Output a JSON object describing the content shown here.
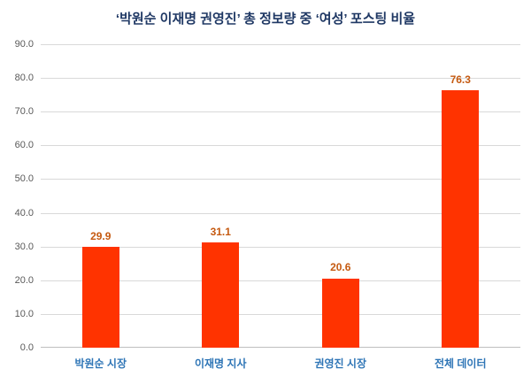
{
  "chart_data": {
    "type": "bar",
    "title": "‘박원순 이재명 권영진’ 총 정보량 중 ‘여성’ 포스팅 비율",
    "categories": [
      "박원순 시장",
      "이재명 지사",
      "권영진 시장",
      "전체 데이터"
    ],
    "values": [
      29.9,
      31.1,
      20.6,
      76.3
    ],
    "value_labels": [
      "29.9",
      "31.1",
      "20.6",
      "76.3"
    ],
    "ylim": [
      0,
      90
    ],
    "ytick_step": 10,
    "ytick_labels": [
      "0.0",
      "10.0",
      "20.0",
      "30.0",
      "40.0",
      "50.0",
      "60.0",
      "70.0",
      "80.0",
      "90.0"
    ],
    "grid": true,
    "legend": "none",
    "xlabel": "",
    "ylabel": "",
    "colors": {
      "bar": "#ff3300",
      "value_label": "#c55a11",
      "category_label": "#2e75b6",
      "title": "#1f3864",
      "gridline": "#d9d9d9",
      "tick_label": "#595959",
      "axis_line": "#bfbfbf",
      "background": "#ffffff"
    }
  }
}
